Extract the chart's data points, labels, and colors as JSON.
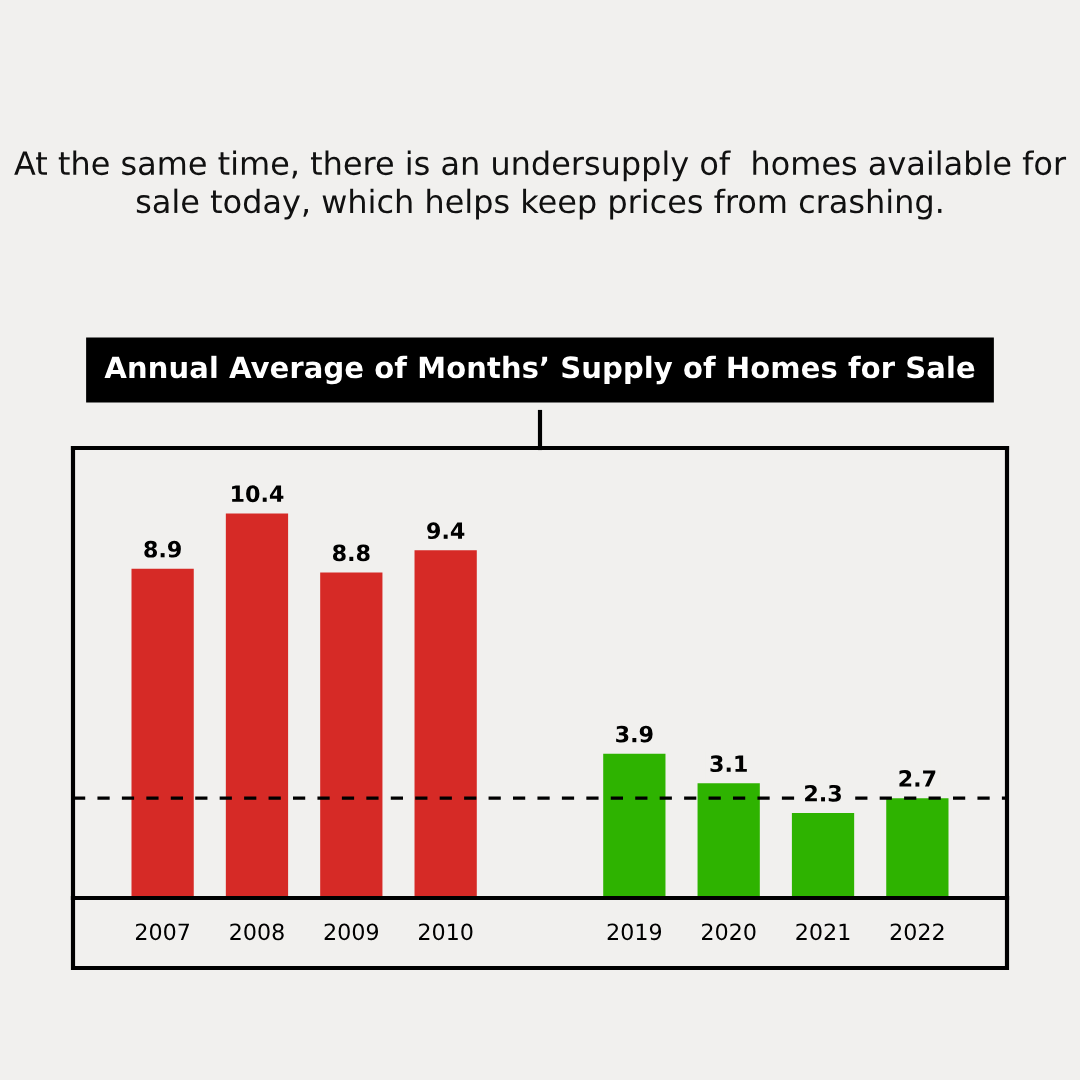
{
  "chart_data": {
    "type": "bar",
    "title": "At the same time, there is an undersupply of  homes available for sale today, which helps keep prices from crashing.",
    "subtitle": "Annual Average of Months’ Supply of Homes for Sale",
    "categories": [
      "2007",
      "2008",
      "2009",
      "2010",
      null,
      "2019",
      "2020",
      "2021",
      "2022"
    ],
    "values": [
      8.9,
      10.4,
      8.8,
      9.4,
      null,
      3.9,
      3.1,
      2.3,
      2.7
    ],
    "colors": [
      "#d62a26",
      "#d62a26",
      "#d62a26",
      "#d62a26",
      "#d62a26",
      "#2eb300",
      "#2eb300",
      "#2eb300",
      "#2eb300"
    ],
    "data_labels": true,
    "ref_lines": [
      {
        "axis": "y",
        "value": 2.7,
        "color": "#000000",
        "line_style": "dashed"
      }
    ],
    "grid": false
  }
}
